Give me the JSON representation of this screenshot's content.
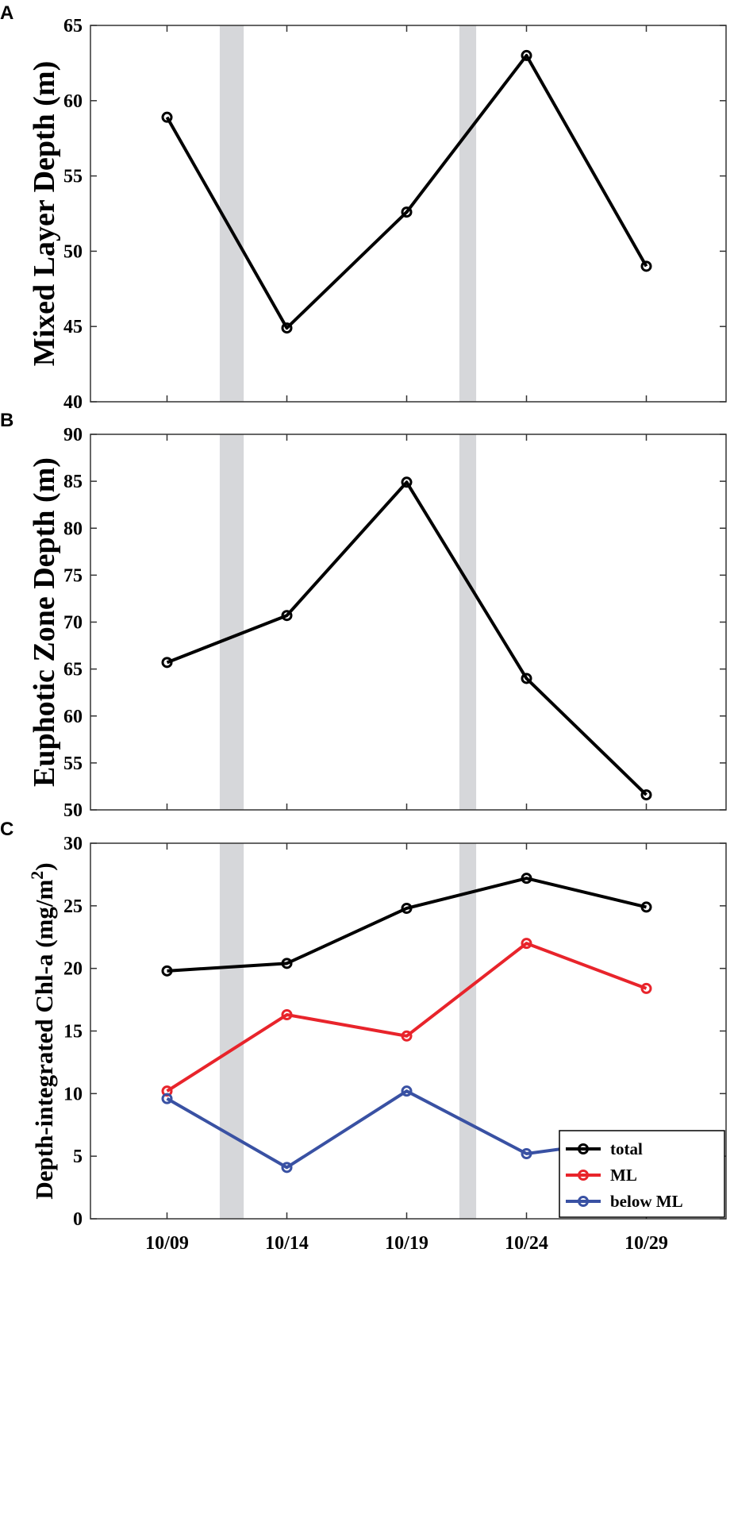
{
  "colors": {
    "total": "#000000",
    "ML": "#e8242b",
    "below ML": "#3951a3",
    "shade": "#d6d7da",
    "axis": "#333333"
  },
  "chart_data": [
    {
      "panel": "A",
      "type": "line",
      "ylabel": "Mixed Layer Depth (m)",
      "categories": [
        "10/09",
        "10/14",
        "10/19",
        "10/24",
        "10/29"
      ],
      "show_x_tick_labels": false,
      "ylim": [
        40,
        65
      ],
      "yticks": [
        40,
        45,
        50,
        55,
        60,
        65
      ],
      "shaded_bands": [
        [
          11.2,
          12.2
        ],
        [
          21.2,
          21.9
        ]
      ],
      "series": [
        {
          "values": [
            58.9,
            44.9,
            52.6,
            63,
            49
          ]
        }
      ]
    },
    {
      "panel": "B",
      "type": "line",
      "ylabel": "Euphotic Zone Depth (m)",
      "categories": [
        "10/09",
        "10/14",
        "10/19",
        "10/24",
        "10/29"
      ],
      "show_x_tick_labels": false,
      "ylim": [
        50,
        90
      ],
      "yticks": [
        50,
        55,
        60,
        65,
        70,
        75,
        80,
        85,
        90
      ],
      "shaded_bands": [
        [
          11.2,
          12.2
        ],
        [
          21.2,
          21.9
        ]
      ],
      "series": [
        {
          "values": [
            65.7,
            70.7,
            84.9,
            64,
            51.6
          ]
        }
      ]
    },
    {
      "panel": "C",
      "type": "line",
      "ylabel": "Depth-integrated Chl-a (mg/m",
      "ylabel_superscript": "2",
      "ylabel_suffix": ")",
      "categories": [
        "10/09",
        "10/14",
        "10/19",
        "10/24",
        "10/29"
      ],
      "show_x_tick_labels": true,
      "ylim": [
        0,
        30
      ],
      "yticks": [
        0,
        5,
        10,
        15,
        20,
        25,
        30
      ],
      "shaded_bands": [
        [
          11.2,
          12.2
        ],
        [
          21.2,
          21.9
        ]
      ],
      "legend_position": "bottom-right",
      "series": [
        {
          "name": "total",
          "values": [
            19.8,
            20.4,
            24.8,
            27.2,
            24.9
          ]
        },
        {
          "name": "ML",
          "values": [
            10.2,
            16.3,
            14.6,
            22,
            18.4
          ]
        },
        {
          "name": "below ML",
          "values": [
            9.6,
            4.1,
            10.2,
            5.2,
            6.5
          ]
        }
      ]
    }
  ]
}
